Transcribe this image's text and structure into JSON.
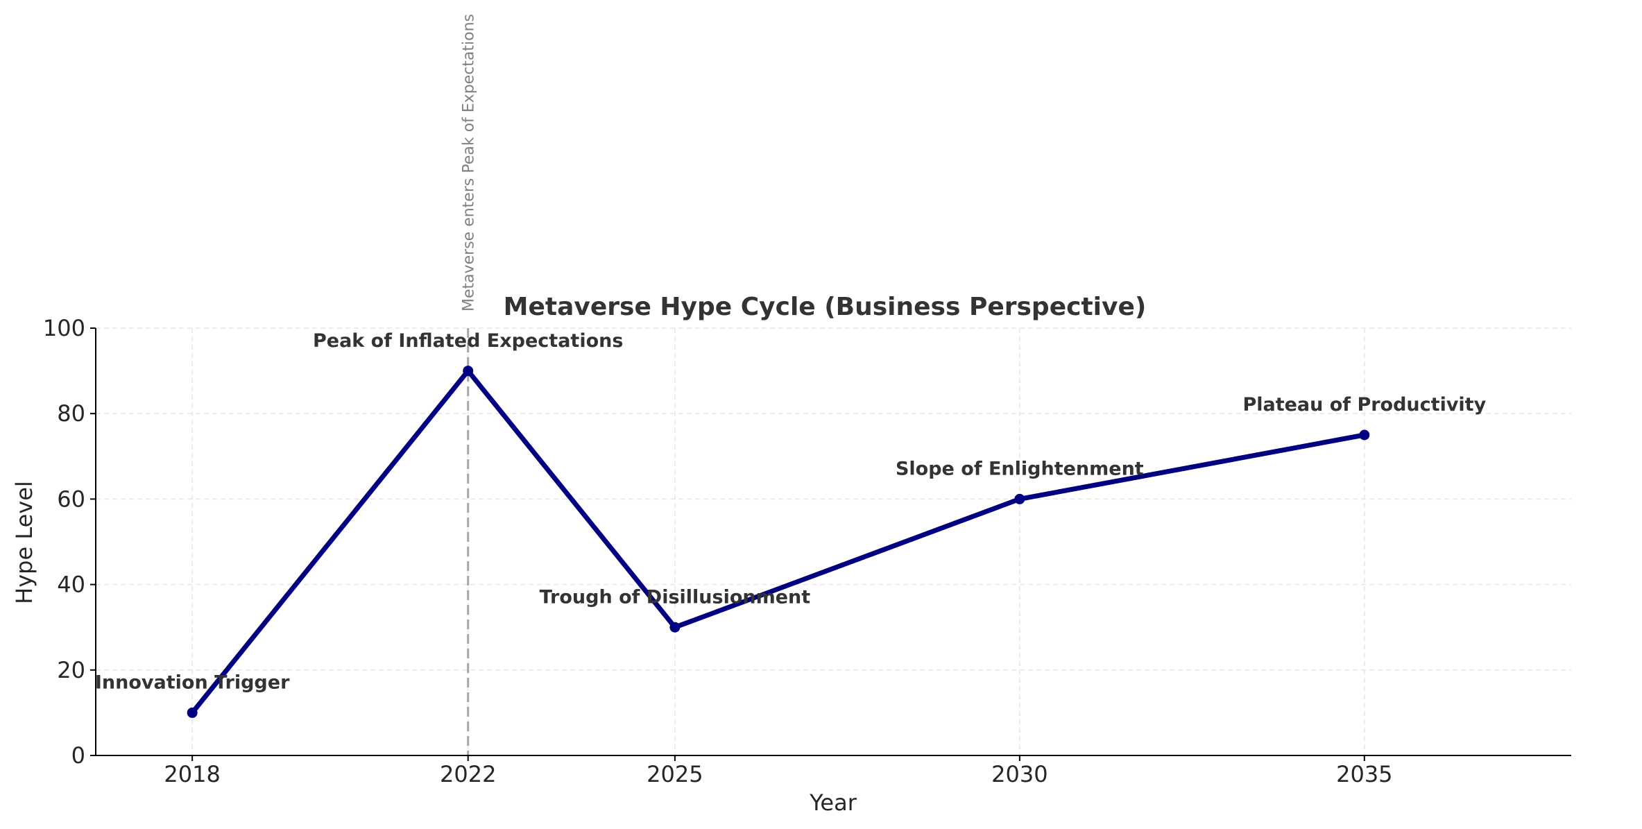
{
  "chart_data": {
    "type": "line",
    "title": "Metaverse Hype Cycle (Business Perspective)",
    "xlabel": "Year",
    "ylabel": "Hype Level",
    "xlim": [
      2016.6,
      2038.0
    ],
    "ylim": [
      0,
      100
    ],
    "x_ticks": [
      2018,
      2022,
      2025,
      2030,
      2035
    ],
    "y_ticks": [
      0,
      20,
      40,
      60,
      80,
      100
    ],
    "grid": true,
    "series": [
      {
        "name": "",
        "color": "#000080",
        "x": [
          2018,
          2022,
          2025,
          2030,
          2035
        ],
        "y": [
          10,
          90,
          30,
          60,
          75
        ]
      }
    ],
    "point_labels": [
      {
        "x": 2018,
        "y": 10,
        "text": "Innovation Trigger"
      },
      {
        "x": 2022,
        "y": 90,
        "text": "Peak of Inflated Expectations"
      },
      {
        "x": 2025,
        "y": 30,
        "text": "Trough of Disillusionment"
      },
      {
        "x": 2030,
        "y": 60,
        "text": "Slope of Enlightenment"
      },
      {
        "x": 2035,
        "y": 75,
        "text": "Plateau of Productivity"
      }
    ],
    "event_line": {
      "x": 2022,
      "text": "Metaverse enters Peak of Expectations",
      "color": "#a6a6a6"
    }
  }
}
